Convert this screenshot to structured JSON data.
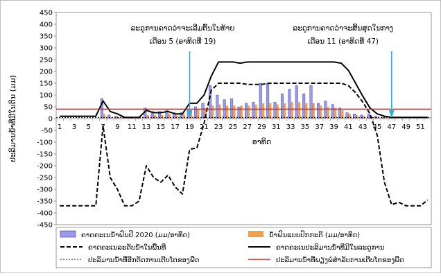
{
  "chart_data": {
    "type": "bar",
    "ylabel": "ປະລິມານນ້ຳທີ່ມີໃນດິນ (ມມ)",
    "xlabel": "ອາທິດ",
    "ylim": [
      -450,
      450
    ],
    "ytick_step": 50,
    "grid": false,
    "x": [
      1,
      2,
      3,
      4,
      5,
      6,
      7,
      8,
      9,
      10,
      11,
      12,
      13,
      14,
      15,
      16,
      17,
      18,
      19,
      20,
      21,
      22,
      23,
      24,
      25,
      26,
      27,
      28,
      29,
      30,
      31,
      32,
      33,
      34,
      35,
      36,
      37,
      38,
      39,
      40,
      41,
      42,
      43,
      44,
      45,
      46,
      47,
      48,
      49,
      50,
      51,
      52
    ],
    "xtick_labels": [
      "1",
      "3",
      "5",
      "7",
      "9",
      "11",
      "13",
      "15",
      "17",
      "19",
      "21",
      "23",
      "25",
      "27",
      "29",
      "31",
      "33",
      "35",
      "37",
      "39",
      "41",
      "43",
      "45",
      "47",
      "49",
      "51"
    ],
    "annotations": [
      {
        "lines": [
          "ລະດູການຄາດວ່າຈະເລີ່ມຕົ້ນໃນທ້າຍ",
          "ເດືອນ 5 (ອາທິດທີ່ 19)"
        ],
        "week": 19,
        "color": "#2eaee0"
      },
      {
        "lines": [
          "ລະດູການຄາດວ່າຈະສິ້ນສຸດໃນກາງ",
          "ເດືອນ 11 (ອາທິດທີ່ 47)"
        ],
        "week": 47,
        "color": "#2eaee0"
      }
    ],
    "series": [
      {
        "name": "ຄາດຄະເນນ້ຳຝົນປີ 2020 (ມມ/ອາທິດ)",
        "kind": "bar",
        "color": "#9999ee",
        "values": [
          0,
          0,
          0,
          0,
          0,
          0,
          85,
          15,
          10,
          5,
          5,
          5,
          45,
          30,
          30,
          35,
          25,
          25,
          40,
          50,
          65,
          140,
          100,
          80,
          85,
          50,
          65,
          70,
          150,
          150,
          70,
          105,
          125,
          140,
          105,
          140,
          65,
          75,
          60,
          45,
          25,
          20,
          15,
          20,
          10,
          5,
          5,
          0,
          0,
          0,
          0,
          0
        ]
      },
      {
        "name": "ນ້ຳຝົນແບບປົກກະຕິ (ມມ/ອາທິດ)",
        "kind": "bar",
        "color": "#f0a050",
        "values": [
          0,
          0,
          0,
          0,
          0,
          0,
          20,
          5,
          5,
          5,
          5,
          5,
          15,
          15,
          15,
          20,
          15,
          20,
          30,
          40,
          45,
          55,
          60,
          55,
          55,
          55,
          55,
          60,
          65,
          65,
          60,
          65,
          70,
          70,
          65,
          65,
          55,
          50,
          45,
          35,
          20,
          15,
          10,
          10,
          5,
          5,
          5,
          0,
          0,
          0,
          0,
          0
        ]
      },
      {
        "name": "ຄາດຄະເນລະດັບນ້ຳໃນພື້ນທີ່",
        "kind": "line",
        "style": "dashed",
        "color": "#000000",
        "values": [
          -370,
          -370,
          -370,
          -370,
          -370,
          -370,
          -30,
          -250,
          -300,
          -370,
          -370,
          -350,
          -200,
          -250,
          -270,
          -240,
          -290,
          -320,
          -130,
          -125,
          -20,
          120,
          150,
          150,
          150,
          150,
          145,
          145,
          145,
          150,
          150,
          150,
          150,
          150,
          150,
          150,
          150,
          150,
          150,
          150,
          140,
          110,
          70,
          20,
          -70,
          -270,
          -365,
          -355,
          -370,
          -370,
          -370,
          -345
        ]
      },
      {
        "name": "ຄາດຄະເນປະລິມານນ້ຳທີ່ມີໃນລະດູການ",
        "kind": "line",
        "style": "solid",
        "color": "#000000",
        "values": [
          10,
          10,
          10,
          10,
          10,
          10,
          75,
          30,
          20,
          5,
          5,
          5,
          35,
          25,
          25,
          30,
          20,
          20,
          65,
          65,
          100,
          180,
          240,
          240,
          240,
          235,
          240,
          240,
          240,
          240,
          240,
          240,
          240,
          240,
          240,
          240,
          240,
          240,
          240,
          235,
          205,
          150,
          95,
          45,
          20,
          10,
          5,
          5,
          5,
          5,
          5,
          5
        ]
      },
      {
        "name": "ປະລິມານນ້ຳທີ່ອີກຕັດການເຕີບໂຕຂອງພືດ",
        "kind": "line",
        "style": "dotted",
        "color": "#000000",
        "values": [
          5,
          5,
          5,
          5,
          5,
          5,
          5,
          5,
          5,
          5,
          5,
          5,
          5,
          5,
          5,
          5,
          5,
          5,
          5,
          5,
          5,
          5,
          5,
          5,
          5,
          5,
          5,
          5,
          5,
          5,
          5,
          5,
          5,
          5,
          5,
          5,
          5,
          5,
          5,
          5,
          5,
          5,
          5,
          5,
          5,
          5,
          5,
          5,
          5,
          5,
          5,
          5
        ]
      },
      {
        "name": "ປະລິມານນ້ຳທີ່ພຽງພໍສຳລັບການເຕີບໂຕຂອງພືດ",
        "kind": "line",
        "style": "solid",
        "color": "#c0392b",
        "values": [
          40,
          40,
          40,
          40,
          40,
          40,
          40,
          40,
          40,
          40,
          40,
          40,
          40,
          40,
          40,
          40,
          40,
          40,
          40,
          40,
          40,
          40,
          40,
          40,
          40,
          40,
          40,
          40,
          40,
          40,
          40,
          40,
          40,
          40,
          40,
          40,
          40,
          40,
          40,
          40,
          40,
          40,
          40,
          40,
          40,
          40,
          40,
          40,
          40,
          40,
          40,
          40
        ]
      }
    ],
    "legend_position": "bottom"
  }
}
